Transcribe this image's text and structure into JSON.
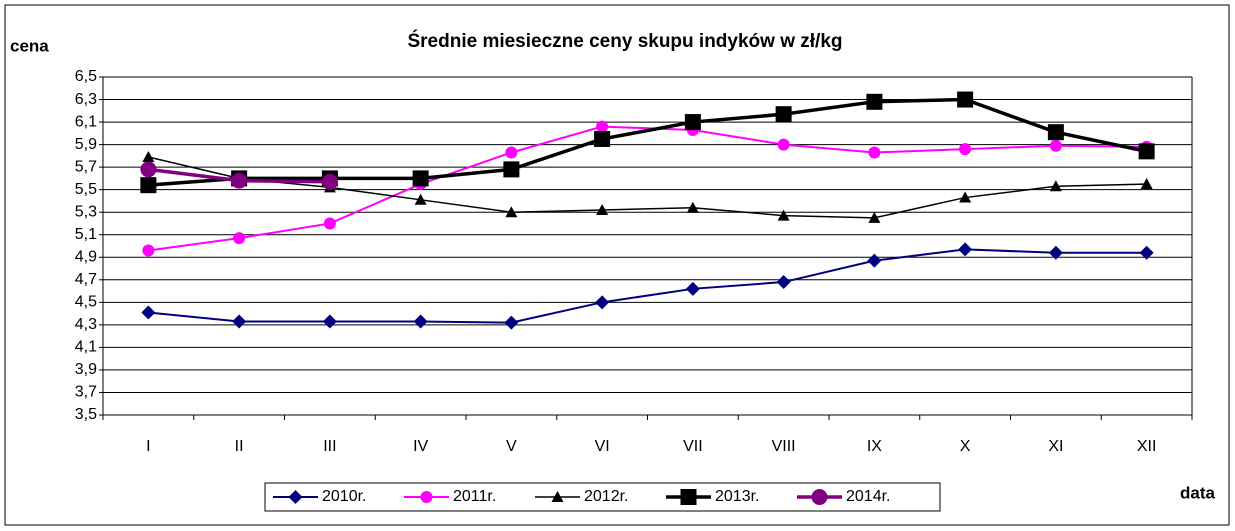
{
  "chart_data": {
    "type": "line",
    "title": "Średnie miesieczne ceny skupu indyków w zł/kg",
    "y_label": "cena",
    "x_label": "data",
    "categories": [
      "I",
      "II",
      "III",
      "IV",
      "V",
      "VI",
      "VII",
      "VIII",
      "IX",
      "X",
      "XI",
      "XII"
    ],
    "series": [
      {
        "name": "2010r.",
        "color": "#000080",
        "marker": "diamond",
        "width": 2,
        "values": [
          4.41,
          4.33,
          4.33,
          4.33,
          4.32,
          4.5,
          4.62,
          4.68,
          4.87,
          4.97,
          4.94,
          4.94
        ]
      },
      {
        "name": "2011r.",
        "color": "#ff00ff",
        "marker": "circle",
        "width": 2,
        "values": [
          4.96,
          5.07,
          5.2,
          5.55,
          5.83,
          6.06,
          6.03,
          5.9,
          5.83,
          5.86,
          5.89,
          5.88
        ]
      },
      {
        "name": "2012r.",
        "color": "#000000",
        "marker": "triangle",
        "width": 1.5,
        "values": [
          5.79,
          5.6,
          5.52,
          5.41,
          5.3,
          5.32,
          5.34,
          5.27,
          5.25,
          5.43,
          5.53,
          5.55
        ]
      },
      {
        "name": "2013r.",
        "color": "#000000",
        "marker": "square",
        "width": 3.5,
        "values": [
          5.54,
          5.6,
          5.6,
          5.6,
          5.68,
          5.95,
          6.1,
          6.17,
          6.28,
          6.3,
          6.01,
          5.84
        ]
      },
      {
        "name": "2014r.",
        "color": "#800080",
        "marker": "bigcircle",
        "width": 3.5,
        "values": [
          5.68,
          5.58,
          5.57,
          null,
          null,
          null,
          null,
          null,
          null,
          null,
          null,
          null
        ]
      }
    ],
    "ylim": [
      3.5,
      6.5
    ],
    "yticks": [
      {
        "value": 3.5,
        "label": "3,5"
      },
      {
        "value": 3.7,
        "label": "3,7"
      },
      {
        "value": 3.9,
        "label": "3,9"
      },
      {
        "value": 4.1,
        "label": "4,1"
      },
      {
        "value": 4.3,
        "label": "4,3"
      },
      {
        "value": 4.5,
        "label": "4,5"
      },
      {
        "value": 4.7,
        "label": "4,7"
      },
      {
        "value": 4.9,
        "label": "4,9"
      },
      {
        "value": 5.1,
        "label": "5,1"
      },
      {
        "value": 5.3,
        "label": "5,3"
      },
      {
        "value": 5.5,
        "label": "5,5"
      },
      {
        "value": 5.7,
        "label": "5,7"
      },
      {
        "value": 5.9,
        "label": "5,9"
      },
      {
        "value": 6.1,
        "label": "6,1"
      },
      {
        "value": 6.3,
        "label": "6,3"
      },
      {
        "value": 6.5,
        "label": "6,5"
      }
    ],
    "grid": true,
    "legend": "bottom"
  }
}
